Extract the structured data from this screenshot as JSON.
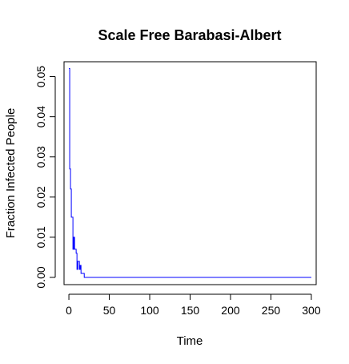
{
  "chart_data": {
    "type": "line",
    "title": "Scale Free Barabasi-Albert",
    "xlabel": "Time",
    "ylabel": "Fraction Infected People",
    "xlim": [
      -6,
      306
    ],
    "ylim": [
      -0.0018,
      0.0537
    ],
    "x_ticks": [
      0,
      50,
      100,
      150,
      200,
      250,
      300
    ],
    "x_tick_labels": [
      "0",
      "50",
      "100",
      "150",
      "200",
      "250",
      "300"
    ],
    "y_ticks": [
      0,
      0.01,
      0.02,
      0.03,
      0.04,
      0.05
    ],
    "y_tick_labels": [
      "0.00",
      "0.01",
      "0.02",
      "0.03",
      "0.04",
      "0.05"
    ],
    "grid": false,
    "legend": "none",
    "series": [
      {
        "color": "#0000ff",
        "x": [
          0,
          1,
          2,
          3,
          4,
          5,
          6,
          7,
          8,
          9,
          10,
          11,
          12,
          13,
          14,
          15,
          16,
          17,
          18,
          19,
          20,
          300
        ],
        "y": [
          0.052,
          0.027,
          0.022,
          0.015,
          0.015,
          0.007,
          0.01,
          0.007,
          0.007,
          0.006,
          0.002,
          0.004,
          0.004,
          0.002,
          0.003,
          0.001,
          0.001,
          0.001,
          0.001,
          0.0,
          0.0,
          0.0
        ]
      }
    ]
  }
}
